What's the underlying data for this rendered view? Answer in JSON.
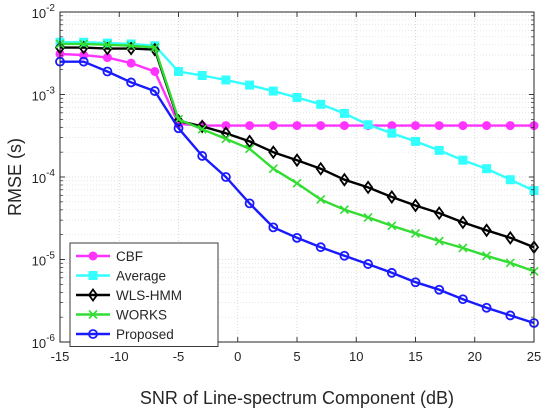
{
  "chart_data": {
    "type": "line",
    "title": "",
    "xlabel": "SNR of Line-spectrum Component (dB)",
    "ylabel": "RMSE (s)",
    "xlim": [
      -15,
      25
    ],
    "ylim": [
      1e-06,
      0.01
    ],
    "yscale": "log",
    "grid": true,
    "legend_position": "bottom-left",
    "x_ticks": [
      -15,
      -10,
      -5,
      0,
      5,
      10,
      15,
      20,
      25
    ],
    "x_tick_labels": [
      "-15",
      "-10",
      "-5",
      "0",
      "5",
      "10",
      "15",
      "20",
      "25"
    ],
    "y_ticks": [
      1e-06,
      1e-05,
      0.0001,
      0.001,
      0.01
    ],
    "y_tick_labels": [
      {
        "base": "10",
        "exp": "-6"
      },
      {
        "base": "10",
        "exp": "-5"
      },
      {
        "base": "10",
        "exp": "-4"
      },
      {
        "base": "10",
        "exp": "-3"
      },
      {
        "base": "10",
        "exp": "-2"
      }
    ],
    "x": [
      -15,
      -13,
      -11,
      -9,
      -7,
      -5,
      -3,
      -1,
      1,
      3,
      5,
      7,
      9,
      11,
      13,
      15,
      17,
      19,
      21,
      23,
      25
    ],
    "series": [
      {
        "name": "CBF",
        "color": "#ff33ff",
        "marker": "circle-filled",
        "values": [
          0.0031,
          0.003,
          0.0028,
          0.0024,
          0.0019,
          0.00044,
          0.00042,
          0.00042,
          0.00042,
          0.00042,
          0.00042,
          0.00042,
          0.00042,
          0.00042,
          0.00042,
          0.00042,
          0.00042,
          0.00042,
          0.00042,
          0.00042,
          0.00042
        ]
      },
      {
        "name": "Average",
        "color": "#33ffff",
        "marker": "square-filled",
        "values": [
          0.0043,
          0.0043,
          0.0042,
          0.0041,
          0.0039,
          0.0019,
          0.0017,
          0.0015,
          0.0013,
          0.0011,
          0.00092,
          0.00076,
          0.00059,
          0.00043,
          0.00034,
          0.00027,
          0.00021,
          0.00016,
          0.000126,
          9.27e-05,
          6.85e-05
        ]
      },
      {
        "name": "WLS-HMM",
        "color": "#000000",
        "marker": "diamond-open",
        "values": [
          0.0037,
          0.0037,
          0.0036,
          0.0036,
          0.0035,
          0.00048,
          0.00041,
          0.00034,
          0.00027,
          0.0002,
          0.00016,
          0.000126,
          9.27e-05,
          7.48e-05,
          5.73e-05,
          4.52e-05,
          3.65e-05,
          2.82e-05,
          2.26e-05,
          1.83e-05,
          1.41e-05
        ]
      },
      {
        "name": "WORKS",
        "color": "#33dd33",
        "marker": "x",
        "values": [
          0.0041,
          0.0041,
          0.004,
          0.0039,
          0.0037,
          0.0005,
          0.00038,
          0.00029,
          0.00022,
          0.000126,
          8.39e-05,
          5.34e-05,
          4.01e-05,
          3.24e-05,
          2.56e-05,
          2.07e-05,
          1.67e-05,
          1.38e-05,
          1.11e-05,
          9.1e-06,
          7.2e-06
        ]
      },
      {
        "name": "Proposed",
        "color": "#1a1aff",
        "marker": "circle-open",
        "values": [
          0.0025,
          0.0025,
          0.0019,
          0.0014,
          0.0011,
          0.00039,
          0.00018,
          0.0001,
          4.79e-05,
          2.45e-05,
          1.83e-05,
          1.41e-05,
          1.11e-05,
          8.8e-06,
          6.9e-06,
          5.3e-06,
          4.3e-06,
          3.3e-06,
          2.6e-06,
          2.1e-06,
          1.7e-06
        ]
      }
    ]
  }
}
